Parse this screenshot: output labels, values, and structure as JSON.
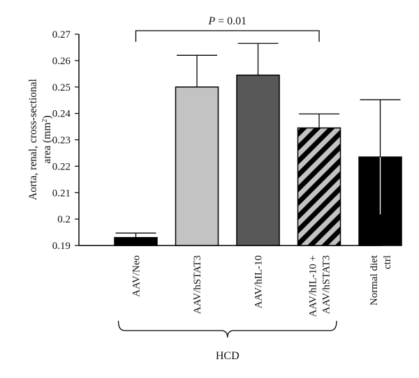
{
  "chart_data": {
    "type": "bar",
    "ylabel_lines": [
      "Aorta, renal, cross-sectional",
      "area (mm",
      "2",
      ")"
    ],
    "ylim": [
      0.19,
      0.27
    ],
    "yticks": [
      "0.19",
      "0.2",
      "0.21",
      "0.22",
      "0.23",
      "0.24",
      "0.25",
      "0.26",
      "0.27"
    ],
    "categories": [
      {
        "lines": [
          "AAV/Neo"
        ]
      },
      {
        "lines": [
          "AAV/hSTAT3"
        ]
      },
      {
        "lines": [
          "AAV/hIL-10"
        ]
      },
      {
        "lines": [
          "AAV/hIL-10 +",
          "AAV/hSTAT3"
        ]
      },
      {
        "lines": [
          "Normal diet",
          "ctrl"
        ]
      }
    ],
    "values": [
      0.193,
      0.25,
      0.2545,
      0.2345,
      0.2235
    ],
    "errors": [
      0.0017,
      0.012,
      0.012,
      0.0053,
      0.0217
    ],
    "bar_styles": [
      {
        "fill": "#000000",
        "pattern": "none"
      },
      {
        "fill": "#c3c3c3",
        "pattern": "none"
      },
      {
        "fill": "#585858",
        "pattern": "none"
      },
      {
        "fill": "#c3c3c3",
        "pattern": "diagonal-black-stripes"
      },
      {
        "fill": "#000000",
        "pattern": "none"
      }
    ],
    "significance": {
      "italic": "P",
      "rest": " = 0.01",
      "from_index": 0,
      "to_index": 3
    },
    "group_bracket": {
      "label": "HCD",
      "from_index": 0,
      "to_index": 3
    },
    "grid": false,
    "legend": "none"
  }
}
